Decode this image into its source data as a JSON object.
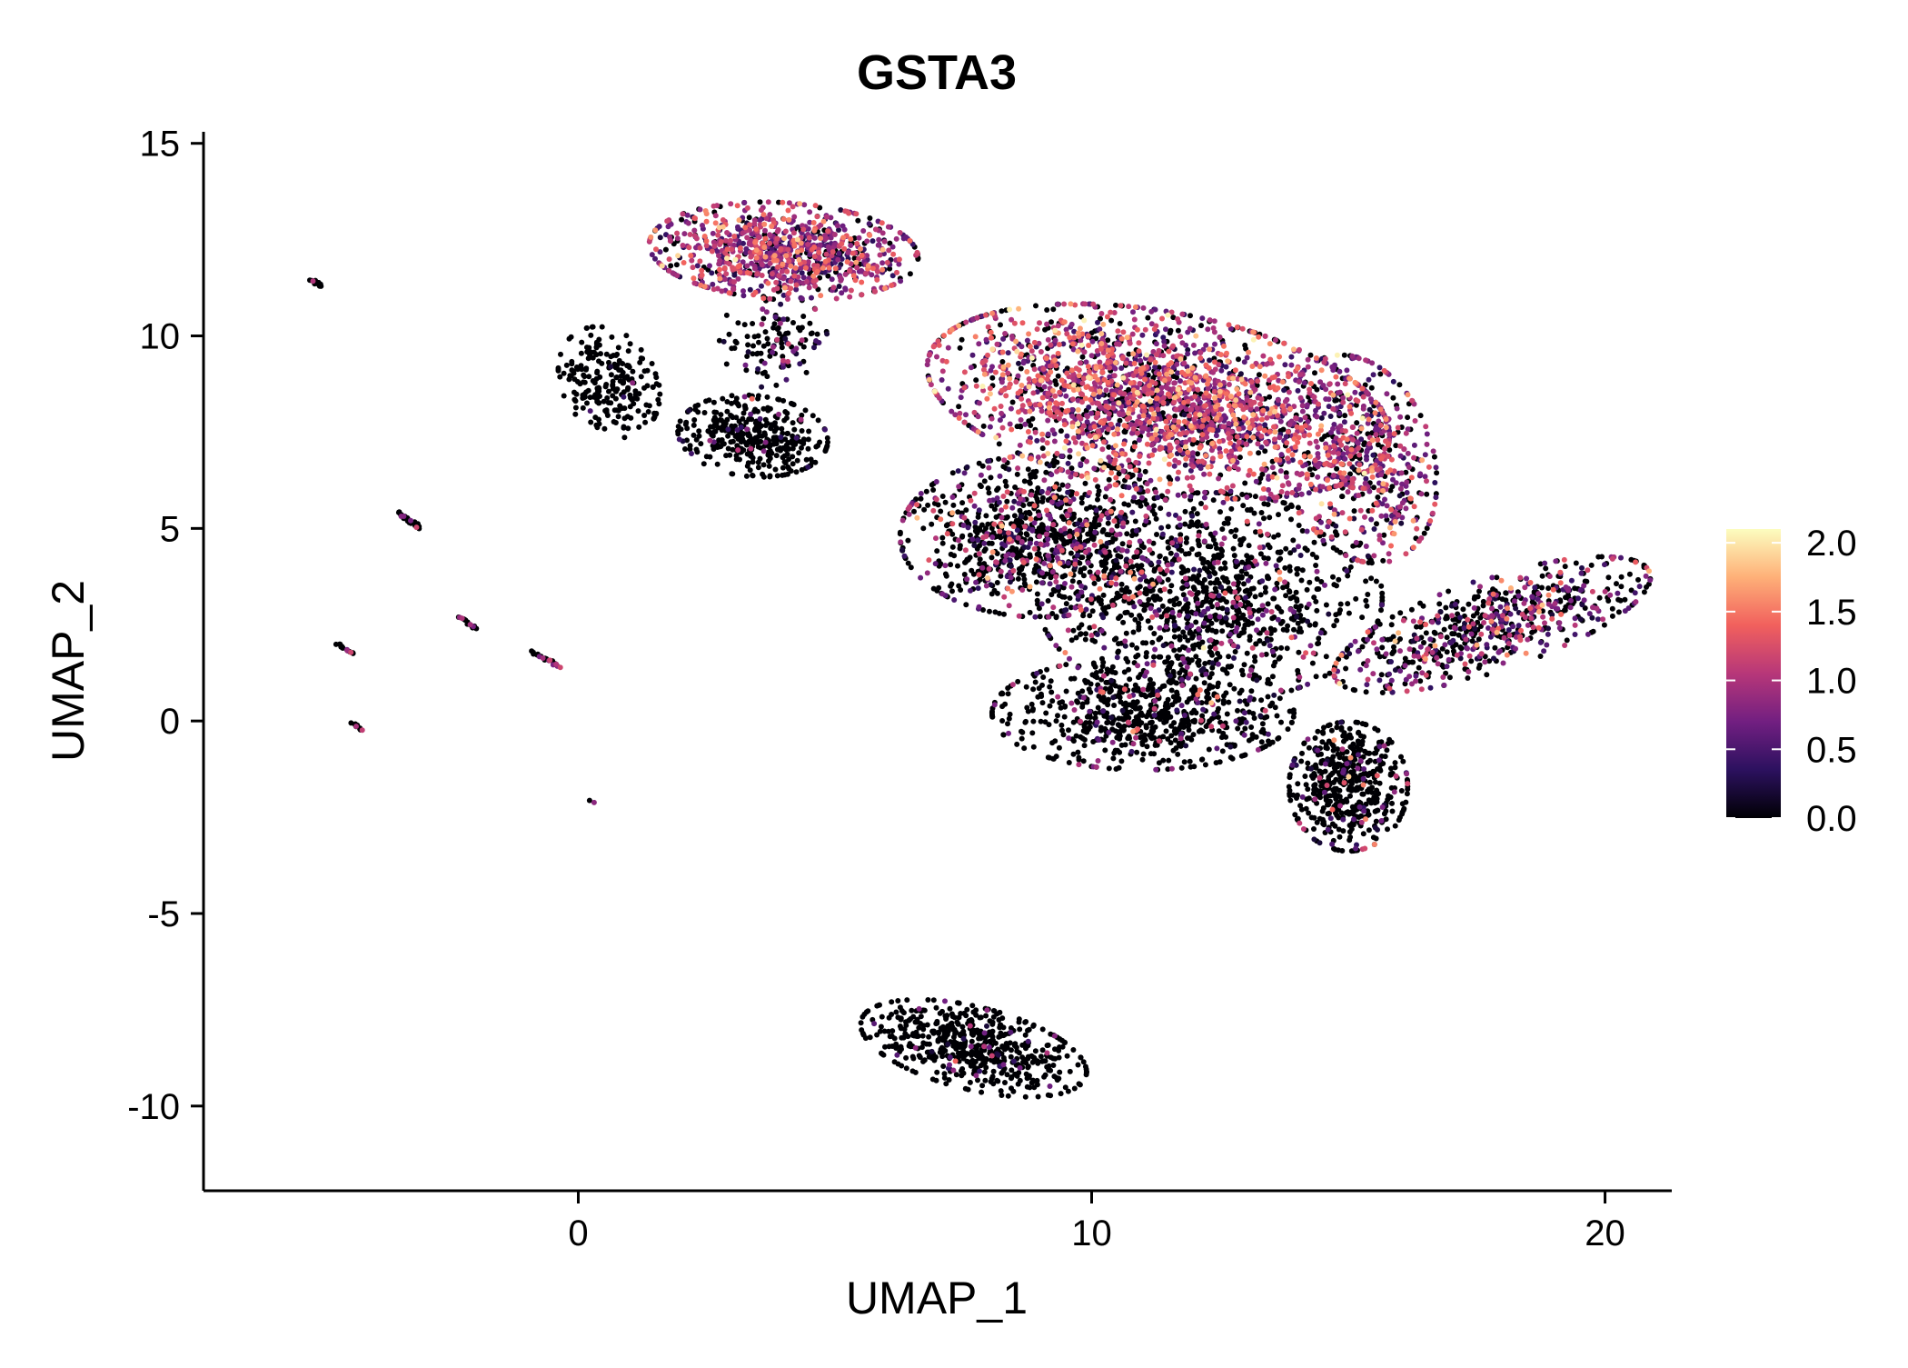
{
  "chart_data": {
    "type": "scatter",
    "title": "GSTA3",
    "xlabel": "UMAP_1",
    "ylabel": "UMAP_2",
    "xlim": [
      -7.3,
      21.3
    ],
    "ylim": [
      -12.2,
      15.3
    ],
    "x_ticks": [
      0,
      10,
      20
    ],
    "y_ticks": [
      15,
      10,
      5,
      0,
      -5,
      -10
    ],
    "x_tick_labels": [
      "0",
      "10",
      "20"
    ],
    "y_tick_labels": [
      "15",
      "10",
      "5",
      "0",
      "-5",
      "-10"
    ],
    "grid": false,
    "legend": {
      "position": "right",
      "title": "",
      "min": 0.0,
      "max": 2.1,
      "ticks": [
        0.0,
        0.5,
        1.0,
        1.5,
        2.0
      ],
      "tick_labels": [
        "0.0",
        "0.5",
        "1.0",
        "1.5",
        "2.0"
      ],
      "colormap": [
        "#000004",
        "#2c115f",
        "#721f81",
        "#b73779",
        "#f1605d",
        "#feb078",
        "#fcfdbf"
      ]
    },
    "clusters": [
      {
        "name": "top-left-cluster",
        "cx": 4.0,
        "cy": 12.2,
        "sx": 1.25,
        "sy": 0.6,
        "rot": -5,
        "n": 900,
        "expr_frac": 0.85,
        "expr_mean": 0.9
      },
      {
        "name": "top-left-tail",
        "cx": 3.8,
        "cy": 9.9,
        "sx": 0.5,
        "sy": 0.6,
        "rot": 0,
        "n": 120,
        "expr_frac": 0.35,
        "expr_mean": 0.6
      },
      {
        "name": "small-left-cluster",
        "cx": 0.6,
        "cy": 8.8,
        "sx": 0.45,
        "sy": 0.7,
        "rot": 15,
        "n": 230,
        "expr_frac": 0.03,
        "expr_mean": 0.5
      },
      {
        "name": "mid-left-cluster",
        "cx": 3.4,
        "cy": 7.4,
        "sx": 0.7,
        "sy": 0.5,
        "rot": -10,
        "n": 380,
        "expr_frac": 0.06,
        "expr_mean": 0.6
      },
      {
        "name": "main-upper",
        "cx": 11.3,
        "cy": 8.3,
        "sx": 2.2,
        "sy": 1.1,
        "rot": -15,
        "n": 2200,
        "expr_frac": 0.82,
        "expr_mean": 1.0
      },
      {
        "name": "main-right-lobe",
        "cx": 15.2,
        "cy": 6.8,
        "sx": 0.7,
        "sy": 1.3,
        "rot": 10,
        "n": 520,
        "expr_frac": 0.7,
        "expr_mean": 0.9
      },
      {
        "name": "main-lower-left",
        "cx": 9.0,
        "cy": 4.8,
        "sx": 1.3,
        "sy": 1.0,
        "rot": 0,
        "n": 1000,
        "expr_frac": 0.35,
        "expr_mean": 0.8
      },
      {
        "name": "main-lower-center",
        "cx": 12.3,
        "cy": 3.2,
        "sx": 1.6,
        "sy": 1.3,
        "rot": 0,
        "n": 1100,
        "expr_frac": 0.2,
        "expr_mean": 0.7
      },
      {
        "name": "lower-stem",
        "cx": 11.0,
        "cy": 0.2,
        "sx": 1.4,
        "sy": 0.7,
        "rot": 0,
        "n": 700,
        "expr_frac": 0.15,
        "expr_mean": 0.7
      },
      {
        "name": "right-wing",
        "cx": 17.8,
        "cy": 2.5,
        "sx": 1.6,
        "sy": 0.55,
        "rot": 25,
        "n": 650,
        "expr_frac": 0.45,
        "expr_mean": 0.8
      },
      {
        "name": "lower-right-cluster",
        "cx": 15.0,
        "cy": -1.7,
        "sx": 0.55,
        "sy": 0.8,
        "rot": 0,
        "n": 520,
        "expr_frac": 0.12,
        "expr_mean": 0.7
      },
      {
        "name": "bottom-cluster",
        "cx": 7.7,
        "cy": -8.5,
        "sx": 1.1,
        "sy": 0.5,
        "rot": -20,
        "n": 560,
        "expr_frac": 0.05,
        "expr_mean": 0.6
      }
    ],
    "segments": [
      {
        "name": "streak-1",
        "x0": -5.2,
        "y0": 11.45,
        "x1": -5.0,
        "y1": 11.3,
        "n": 12
      },
      {
        "name": "streak-2",
        "x0": -3.5,
        "y0": 5.4,
        "x1": -3.1,
        "y1": 5.0,
        "n": 25
      },
      {
        "name": "streak-3",
        "x0": -2.3,
        "y0": 2.7,
        "x1": -2.0,
        "y1": 2.4,
        "n": 15
      },
      {
        "name": "streak-4",
        "x0": -4.7,
        "y0": 2.0,
        "x1": -4.4,
        "y1": 1.75,
        "n": 15
      },
      {
        "name": "streak-5",
        "x0": -4.4,
        "y0": -0.05,
        "x1": -4.2,
        "y1": -0.25,
        "n": 10
      },
      {
        "name": "streak-6",
        "x0": -0.9,
        "y0": 1.8,
        "x1": -0.35,
        "y1": 1.4,
        "n": 22
      },
      {
        "name": "streak-7",
        "x0": 0.25,
        "y0": -2.05,
        "x1": 0.3,
        "y1": -2.1,
        "n": 2
      }
    ]
  }
}
